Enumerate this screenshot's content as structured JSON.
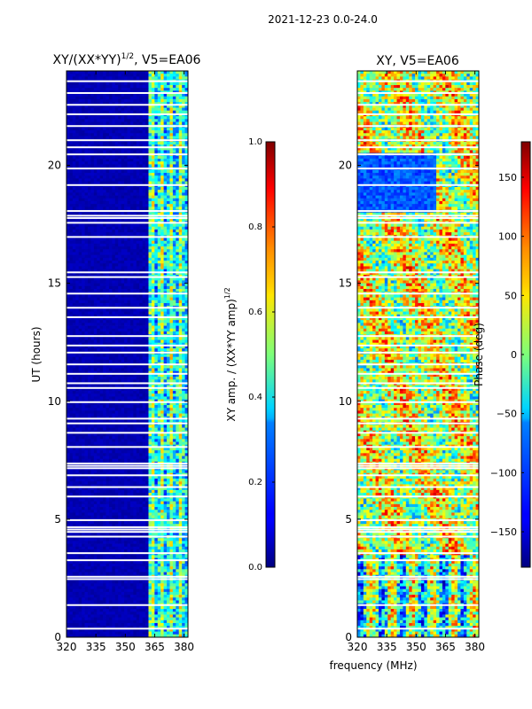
{
  "suptitle": "2021-12-23 0.0-24.0",
  "chart_data": [
    {
      "type": "heatmap",
      "title": "XY/(XX*YY)",
      "title_exp": "1/2",
      "title_suffix": ", V5=EA06",
      "xlabel": "",
      "ylabel": "UT (hours)",
      "xlim": [
        320,
        382
      ],
      "ylim": [
        0,
        24
      ],
      "xticks": [
        320,
        335,
        350,
        365,
        380
      ],
      "yticks": [
        0,
        5,
        10,
        15,
        20
      ],
      "colorbar": {
        "label": "XY amp. / (XX*YY amp)",
        "label_exp": "1/2",
        "range": [
          0.0,
          1.0
        ],
        "ticks": [
          "0.0",
          "0.2",
          "0.4",
          "0.6",
          "0.8",
          "1.0"
        ],
        "colormap": "jet"
      }
    },
    {
      "type": "heatmap",
      "title": "XY, V5=EA06",
      "xlabel": "frequency (MHz)",
      "ylabel": "",
      "xlim": [
        320,
        382
      ],
      "ylim": [
        0,
        24
      ],
      "xticks": [
        320,
        335,
        350,
        365,
        380
      ],
      "yticks": [
        0,
        5,
        10,
        15,
        20
      ],
      "colorbar": {
        "label": "Phase (deg)",
        "range": [
          -180,
          180
        ],
        "ticks": [
          "150",
          "100",
          "50",
          "0",
          "−50",
          "−100",
          "−150"
        ],
        "tick_values": [
          150,
          100,
          50,
          0,
          -50,
          -100,
          -150
        ],
        "colormap": "jet"
      }
    }
  ]
}
